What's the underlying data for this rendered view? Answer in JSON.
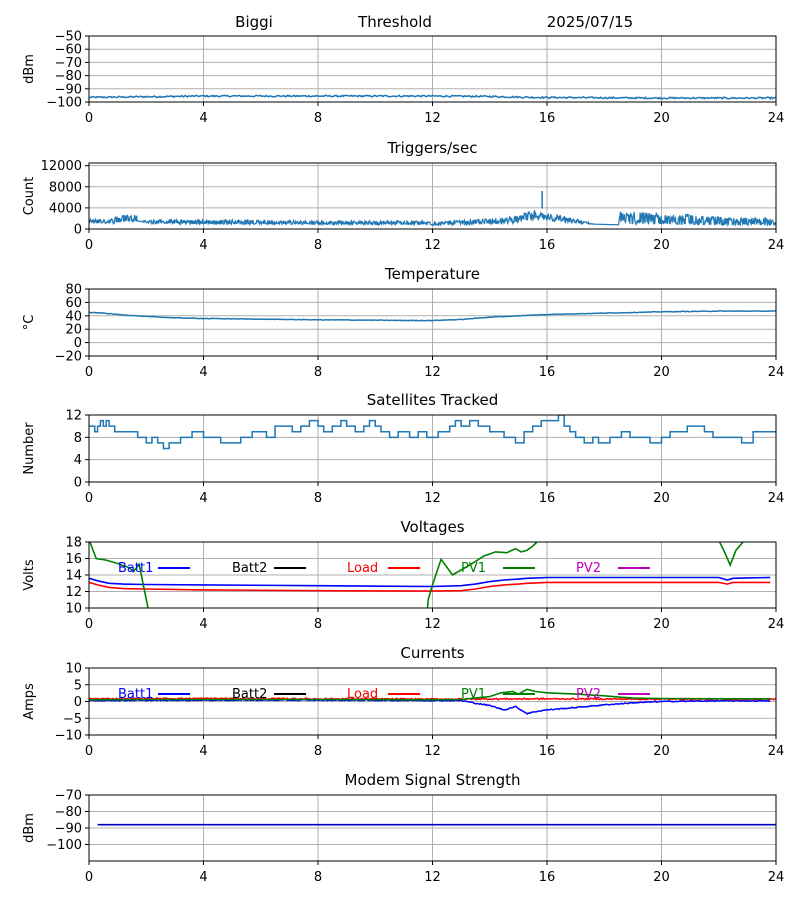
{
  "header": {
    "site": "Biggi",
    "panel": "Threshold",
    "date": "2025/07/15"
  },
  "chart_data": [
    {
      "id": "threshold",
      "type": "line",
      "title": "",
      "xlabel": "",
      "ylabel": "dBm",
      "xlim": [
        0,
        24
      ],
      "ylim": [
        -100,
        -50
      ],
      "xticks": [
        0,
        4,
        8,
        12,
        16,
        20,
        24
      ],
      "yticks": [
        -100,
        -90,
        -80,
        -70,
        -60,
        -50
      ],
      "yticklabels": [
        "−100",
        "−90",
        "−80",
        "−70",
        "−60",
        "−50"
      ],
      "grid": true,
      "series": [
        {
          "name": "",
          "color": "#1f77b4",
          "style": "noisy",
          "noise": 0.6,
          "x": [
            0,
            2,
            4,
            8,
            12,
            14,
            15.5,
            18,
            20,
            24
          ],
          "y": [
            -96.5,
            -96,
            -95.5,
            -95.5,
            -95.5,
            -95.8,
            -96.5,
            -96.8,
            -97,
            -97
          ]
        }
      ]
    },
    {
      "id": "triggers",
      "type": "line",
      "title": "Triggers/sec",
      "xlabel": "",
      "ylabel": "Count",
      "xlim": [
        0,
        24
      ],
      "ylim": [
        0,
        12500
      ],
      "xticks": [
        0,
        4,
        8,
        12,
        16,
        20,
        24
      ],
      "yticks": [
        0,
        4000,
        8000,
        12000
      ],
      "yticklabels": [
        "0",
        "4000",
        "8000",
        "12000"
      ],
      "grid": true,
      "series": [
        {
          "name": "",
          "color": "#1f77b4",
          "style": "band",
          "x": [
            0,
            0.6,
            1.65,
            1.7,
            2.15,
            4,
            8,
            11.5,
            12,
            14,
            14.8,
            15.3,
            15.85,
            15.9,
            16.1,
            17.2,
            17.7,
            18.5,
            18.55,
            20,
            22,
            24
          ],
          "low": [
            1100,
            1000,
            1500,
            1500,
            1000,
            900,
            850,
            800,
            700,
            900,
            1000,
            1600,
            1700,
            1700,
            1500,
            900,
            900,
            800,
            900,
            800,
            700,
            700
          ],
          "high": [
            1900,
            2000,
            3000,
            1500,
            1700,
            1800,
            1600,
            1500,
            1300,
            2000,
            2300,
            3300,
            3900,
            3500,
            3200,
            1600,
            900,
            800,
            3400,
            3000,
            2400,
            2000
          ],
          "spikes": [
            {
              "x": 15.83,
              "y": 7200
            }
          ]
        }
      ]
    },
    {
      "id": "temperature",
      "type": "line",
      "title": "Temperature",
      "xlabel": "",
      "ylabel": "°C",
      "xlim": [
        0,
        24
      ],
      "ylim": [
        -20,
        80
      ],
      "xticks": [
        0,
        4,
        8,
        12,
        16,
        20,
        24
      ],
      "yticks": [
        -20,
        0,
        20,
        40,
        60,
        80
      ],
      "yticklabels": [
        "−20",
        "0",
        "20",
        "40",
        "60",
        "80"
      ],
      "grid": true,
      "series": [
        {
          "name": "",
          "color": "#1f77b4",
          "style": "noisy",
          "noise": 0.4,
          "x": [
            0,
            0.5,
            1,
            2,
            3,
            4,
            6,
            8,
            10,
            11,
            12,
            13,
            14,
            15,
            16,
            18,
            20,
            22,
            24
          ],
          "y": [
            45,
            44,
            42,
            39,
            37,
            36,
            35,
            34,
            33.5,
            33,
            33,
            34.5,
            38,
            40,
            42,
            44,
            46,
            47,
            47
          ]
        }
      ]
    },
    {
      "id": "satellites",
      "type": "line",
      "title": "Satellites Tracked",
      "xlabel": "",
      "ylabel": "Number",
      "xlim": [
        0,
        24
      ],
      "ylim": [
        0,
        12
      ],
      "xticks": [
        0,
        4,
        8,
        12,
        16,
        20,
        24
      ],
      "yticks": [
        0,
        4,
        8,
        12
      ],
      "yticklabels": [
        "0",
        "4",
        "8",
        "12"
      ],
      "grid": true,
      "series": [
        {
          "name": "",
          "color": "#1f77b4",
          "style": "step",
          "x": [
            0,
            0.2,
            0.3,
            0.4,
            0.5,
            0.6,
            0.7,
            0.9,
            1.3,
            1.7,
            2.0,
            2.2,
            2.4,
            2.6,
            2.8,
            3.2,
            3.6,
            4.0,
            4.4,
            4.6,
            5.0,
            5.3,
            5.7,
            6.0,
            6.2,
            6.5,
            6.8,
            7.1,
            7.4,
            7.7,
            8.0,
            8.2,
            8.5,
            8.8,
            9.0,
            9.3,
            9.6,
            9.8,
            10.0,
            10.2,
            10.5,
            10.8,
            11.0,
            11.2,
            11.5,
            11.8,
            12.2,
            12.6,
            12.8,
            13.0,
            13.3,
            13.6,
            14.0,
            14.5,
            14.9,
            15.2,
            15.5,
            15.8,
            16.2,
            16.4,
            16.6,
            16.8,
            17.0,
            17.3,
            17.6,
            17.8,
            18.2,
            18.6,
            18.9,
            19.2,
            19.6,
            20.0,
            20.3,
            20.6,
            20.9,
            21.3,
            21.5,
            21.8,
            22.2,
            22.6,
            22.8,
            23.2,
            24
          ],
          "y": [
            10,
            9,
            10,
            11,
            10,
            11,
            10,
            9,
            9,
            8,
            7,
            8,
            7,
            6,
            7,
            8,
            9,
            8,
            8,
            7,
            7,
            8,
            9,
            9,
            8,
            10,
            10,
            9,
            10,
            11,
            10,
            9,
            10,
            11,
            10,
            9,
            10,
            11,
            10,
            9,
            8,
            9,
            9,
            8,
            9,
            8,
            9,
            10,
            11,
            10,
            11,
            10,
            9,
            8,
            7,
            9,
            10,
            11,
            11,
            12,
            10,
            9,
            8,
            7,
            8,
            7,
            8,
            9,
            8,
            8,
            7,
            8,
            9,
            9,
            10,
            10,
            9,
            8,
            8,
            8,
            7,
            9,
            9
          ]
        }
      ]
    },
    {
      "id": "voltages",
      "type": "line",
      "title": "Voltages",
      "xlabel": "",
      "ylabel": "Volts",
      "xlim": [
        0,
        24
      ],
      "ylim": [
        10,
        18
      ],
      "xticks": [
        0,
        4,
        8,
        12,
        16,
        20,
        24
      ],
      "yticks": [
        10,
        12,
        14,
        16,
        18
      ],
      "yticklabels": [
        "10",
        "12",
        "14",
        "16",
        "18"
      ],
      "grid": true,
      "series": [
        {
          "name": "Batt1",
          "color": "#0000ff",
          "style": "line",
          "x": [
            0,
            0.3,
            0.7,
            1.2,
            2,
            4,
            8,
            12,
            13,
            13.5,
            14,
            14.5,
            15,
            15.3,
            16,
            20,
            22,
            22.3,
            22.5,
            23,
            23.8
          ],
          "y": [
            13.6,
            13.3,
            13.0,
            12.9,
            12.85,
            12.8,
            12.7,
            12.6,
            12.7,
            12.9,
            13.2,
            13.4,
            13.5,
            13.6,
            13.7,
            13.7,
            13.7,
            13.4,
            13.6,
            13.65,
            13.7
          ]
        },
        {
          "name": "Batt2",
          "color": "#000000",
          "style": "line",
          "x": [],
          "y": []
        },
        {
          "name": "Load",
          "color": "#ff0000",
          "style": "line",
          "x": [
            0,
            0.3,
            0.7,
            1.2,
            2,
            4,
            8,
            12,
            13,
            13.5,
            14,
            14.5,
            15,
            15.3,
            16,
            20,
            22,
            22.3,
            22.5,
            23,
            23.8
          ],
          "y": [
            13.1,
            12.8,
            12.5,
            12.35,
            12.3,
            12.2,
            12.1,
            12.05,
            12.1,
            12.3,
            12.6,
            12.8,
            12.9,
            13.0,
            13.1,
            13.1,
            13.1,
            12.9,
            13.1,
            13.1,
            13.1
          ]
        },
        {
          "name": "PV1",
          "color": "#008000",
          "style": "line",
          "clip": true,
          "x": [
            0,
            0.25,
            0.6,
            1.0,
            1.4,
            1.55,
            1.75,
            2.05,
            2.2,
            11.7,
            11.85,
            12.0,
            12.3,
            12.7,
            13.0,
            13.3,
            13.8,
            14.2,
            14.6,
            14.9,
            15.1,
            15.3,
            15.5,
            15.8,
            21.6,
            22.0,
            22.2,
            22.4,
            22.6,
            23.0
          ],
          "y": [
            18.3,
            16.0,
            15.8,
            15.4,
            14.9,
            14.4,
            15.3,
            10.2,
            5.0,
            5.0,
            11.0,
            12.8,
            15.9,
            14.0,
            14.6,
            15.2,
            16.3,
            16.8,
            16.7,
            17.2,
            16.8,
            17.0,
            17.5,
            18.5,
            18.6,
            18.2,
            16.8,
            15.2,
            17.0,
            18.6
          ]
        },
        {
          "name": "PV2",
          "color": "#bf00bf",
          "style": "line",
          "x": [],
          "y": []
        }
      ]
    },
    {
      "id": "currents",
      "type": "line",
      "title": "Currents",
      "xlabel": "",
      "ylabel": "Amps",
      "xlim": [
        0,
        24
      ],
      "ylim": [
        -10,
        10
      ],
      "xticks": [
        0,
        4,
        8,
        12,
        16,
        20,
        24
      ],
      "yticks": [
        -10,
        -5,
        0,
        5,
        10
      ],
      "yticklabels": [
        "−10",
        "−5",
        "0",
        "5",
        "10"
      ],
      "grid": true,
      "series": [
        {
          "name": "Batt1",
          "color": "#0000ff",
          "style": "noisy",
          "noise": 0.15,
          "x": [
            0,
            4,
            8,
            12,
            13,
            13.5,
            14,
            14.5,
            14.9,
            15.3,
            15.6,
            16,
            17,
            18,
            19,
            20,
            22,
            23.8
          ],
          "y": [
            0.3,
            0.4,
            0.4,
            0.3,
            0.3,
            -0.5,
            -1.2,
            -2.5,
            -1.5,
            -3.6,
            -3.0,
            -2.5,
            -1.8,
            -1.0,
            -0.4,
            0.0,
            0.2,
            0.2
          ]
        },
        {
          "name": "Batt2",
          "color": "#000000",
          "style": "line",
          "x": [],
          "y": []
        },
        {
          "name": "Load",
          "color": "#ff0000",
          "style": "noisy",
          "noise": 0.2,
          "x": [
            0,
            4,
            8,
            12,
            16,
            20,
            24
          ],
          "y": [
            0.8,
            0.9,
            0.8,
            0.7,
            0.8,
            0.7,
            0.7
          ]
        },
        {
          "name": "PV1",
          "color": "#008000",
          "style": "line",
          "x": [
            0,
            2,
            4,
            8,
            12,
            13,
            13.5,
            14,
            14.4,
            14.8,
            15.0,
            15.3,
            15.6,
            16,
            17,
            18,
            18.5,
            19,
            20,
            22,
            23.8
          ],
          "y": [
            0.5,
            0.6,
            0.6,
            0.6,
            0.5,
            0.6,
            1.0,
            1.5,
            2.6,
            3.0,
            2.2,
            3.6,
            3.0,
            2.6,
            2.2,
            1.7,
            1.3,
            1.0,
            0.9,
            0.8,
            0.8
          ]
        },
        {
          "name": "PV2",
          "color": "#bf00bf",
          "style": "line",
          "x": [],
          "y": []
        }
      ]
    },
    {
      "id": "modem",
      "type": "line",
      "title": "Modem Signal Strength",
      "xlabel": "",
      "ylabel": "dBm",
      "xlim": [
        0,
        24
      ],
      "ylim": [
        -110,
        -70
      ],
      "xticks": [
        0,
        4,
        8,
        12,
        16,
        20,
        24
      ],
      "yticks": [
        -100,
        -90,
        -80,
        -70
      ],
      "yticklabels": [
        "−100",
        "−90",
        "−80",
        "−70"
      ],
      "grid": true,
      "series": [
        {
          "name": "",
          "color": "#0000bf",
          "style": "line",
          "x": [
            0.3,
            24
          ],
          "y": [
            -88,
            -88
          ]
        }
      ]
    }
  ],
  "legend_order": [
    "Batt1",
    "Batt2",
    "Load",
    "PV1",
    "PV2"
  ]
}
